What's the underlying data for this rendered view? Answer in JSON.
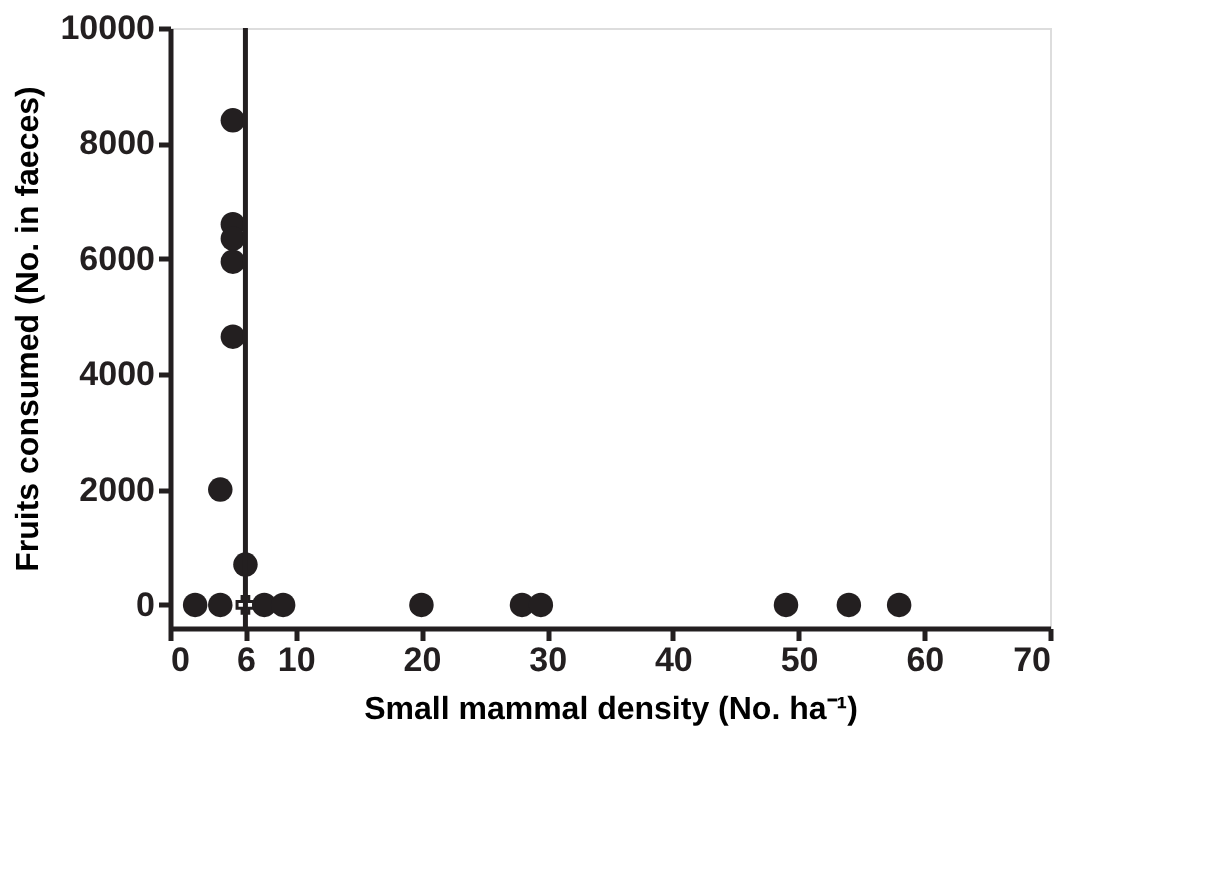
{
  "chart_data": {
    "type": "scatter",
    "xlabel": "Small mammal density (No. ha⁻¹)",
    "ylabel": "Fruits consumed (No. in faeces)",
    "series": [
      {
        "color": "#231f20",
        "marker": "circle",
        "x": [
          5,
          5,
          5,
          5,
          5,
          4,
          6,
          2,
          4,
          7.5,
          9,
          20,
          28,
          29.5,
          49,
          54,
          58
        ],
        "values": [
          8400,
          6600,
          6350,
          5950,
          4650,
          2000,
          700,
          0,
          0,
          0,
          0,
          0,
          0,
          0,
          0,
          0,
          0
        ]
      },
      {
        "color": "#231f20",
        "marker": "cross",
        "x": [
          6
        ],
        "values": [
          0
        ]
      }
    ],
    "xlim": [
      0,
      70
    ],
    "xticks": [
      0,
      6,
      10,
      20,
      30,
      40,
      50,
      60,
      70
    ],
    "ylim": [
      -400,
      10000
    ],
    "yticks": [
      0,
      2000,
      4000,
      6000,
      8000,
      10000
    ],
    "ref_lines": [
      {
        "axis": "x",
        "value": 6,
        "color": "#231f20"
      }
    ],
    "grid": false
  }
}
